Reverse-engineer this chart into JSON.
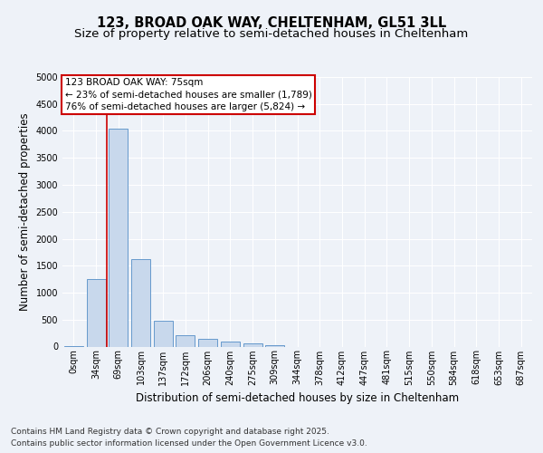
{
  "title_line1": "123, BROAD OAK WAY, CHELTENHAM, GL51 3LL",
  "title_line2": "Size of property relative to semi-detached houses in Cheltenham",
  "xlabel": "Distribution of semi-detached houses by size in Cheltenham",
  "ylabel": "Number of semi-detached properties",
  "categories": [
    "0sqm",
    "34sqm",
    "69sqm",
    "103sqm",
    "137sqm",
    "172sqm",
    "206sqm",
    "240sqm",
    "275sqm",
    "309sqm",
    "344sqm",
    "378sqm",
    "412sqm",
    "447sqm",
    "481sqm",
    "515sqm",
    "550sqm",
    "584sqm",
    "618sqm",
    "653sqm",
    "687sqm"
  ],
  "values": [
    15,
    1250,
    4050,
    1620,
    480,
    210,
    140,
    95,
    65,
    20,
    0,
    0,
    0,
    0,
    0,
    0,
    0,
    0,
    0,
    0,
    0
  ],
  "bar_color": "#c8d8ec",
  "bar_edge_color": "#6699cc",
  "property_line_x": 1.5,
  "annotation_text_line1": "123 BROAD OAK WAY: 75sqm",
  "annotation_text_line2": "← 23% of semi-detached houses are smaller (1,789)",
  "annotation_text_line3": "76% of semi-detached houses are larger (5,824) →",
  "annotation_box_facecolor": "#ffffff",
  "annotation_box_edgecolor": "#cc0000",
  "vertical_line_color": "#cc0000",
  "ylim": [
    0,
    5000
  ],
  "yticks": [
    0,
    500,
    1000,
    1500,
    2000,
    2500,
    3000,
    3500,
    4000,
    4500,
    5000
  ],
  "bg_color": "#eef2f8",
  "plot_bg_color": "#eef2f8",
  "grid_color": "#ffffff",
  "title_fontsize": 10.5,
  "subtitle_fontsize": 9.5,
  "axis_label_fontsize": 8.5,
  "tick_fontsize": 7,
  "annotation_fontsize": 7.5,
  "footer_fontsize": 6.5,
  "footer_line1": "Contains HM Land Registry data © Crown copyright and database right 2025.",
  "footer_line2": "Contains public sector information licensed under the Open Government Licence v3.0."
}
